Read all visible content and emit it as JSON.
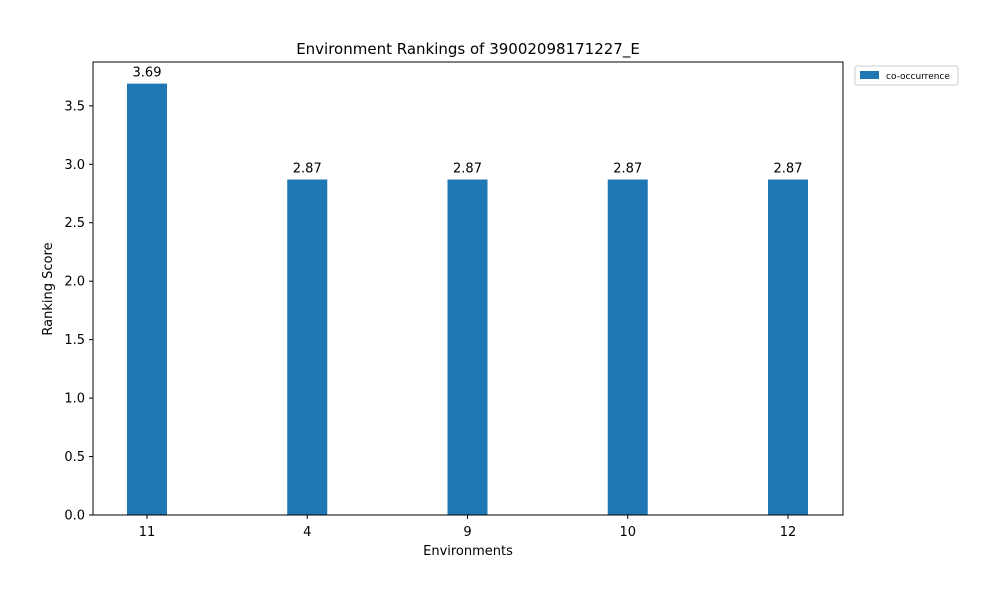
{
  "chart_data": {
    "type": "bar",
    "title": "Environment Rankings of 39002098171227_E",
    "xlabel": "Environments",
    "ylabel": "Ranking Score",
    "categories": [
      "11",
      "4",
      "9",
      "10",
      "12"
    ],
    "series": [
      {
        "name": "co-occurrence",
        "values": [
          3.69,
          2.87,
          2.87,
          2.87,
          2.87
        ],
        "color": "#1f77b4"
      }
    ],
    "data_labels": [
      "3.69",
      "2.87",
      "2.87",
      "2.87",
      "2.87"
    ],
    "ylim": [
      0,
      3.875
    ],
    "yticks": [
      0.0,
      0.5,
      1.0,
      1.5,
      2.0,
      2.5,
      3.0,
      3.5
    ],
    "ytick_labels": [
      "0.0",
      "0.5",
      "1.0",
      "1.5",
      "2.0",
      "2.5",
      "3.0",
      "3.5"
    ],
    "grid": false,
    "legend_position": "outside top-right"
  }
}
